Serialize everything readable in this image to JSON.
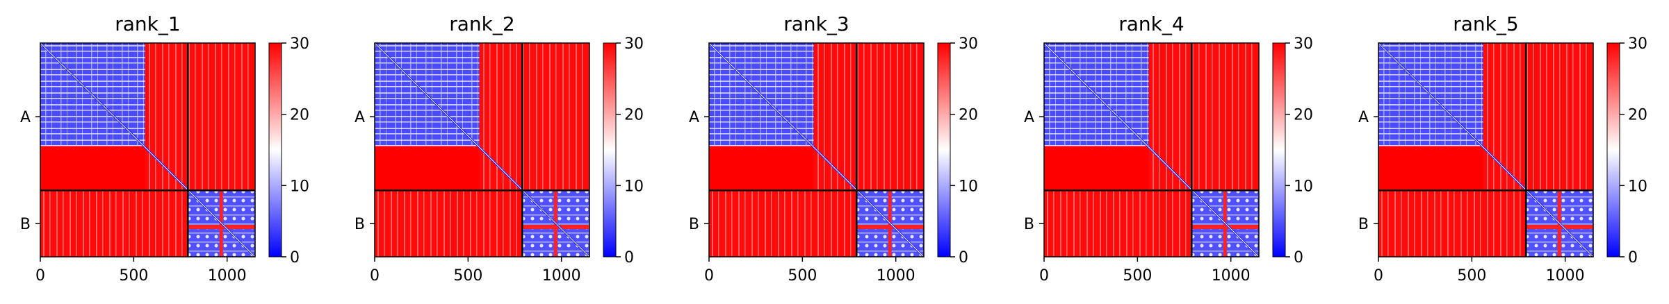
{
  "chart_data": {
    "type": "heatmap",
    "colormap": [
      "#0000ff",
      "#ffffff",
      "#ff0000"
    ],
    "clim": [
      0,
      30
    ],
    "colorbar_ticks": [
      0,
      10,
      20,
      30
    ],
    "x_ticks": [
      0,
      500,
      1000
    ],
    "xlim": [
      0,
      1150
    ],
    "chain_boundary": 790,
    "chain_labels": [
      "A",
      "B"
    ],
    "panels": [
      {
        "title": "rank_1"
      },
      {
        "title": "rank_2"
      },
      {
        "title": "rank_3"
      },
      {
        "title": "rank_4"
      },
      {
        "title": "rank_5"
      }
    ]
  }
}
